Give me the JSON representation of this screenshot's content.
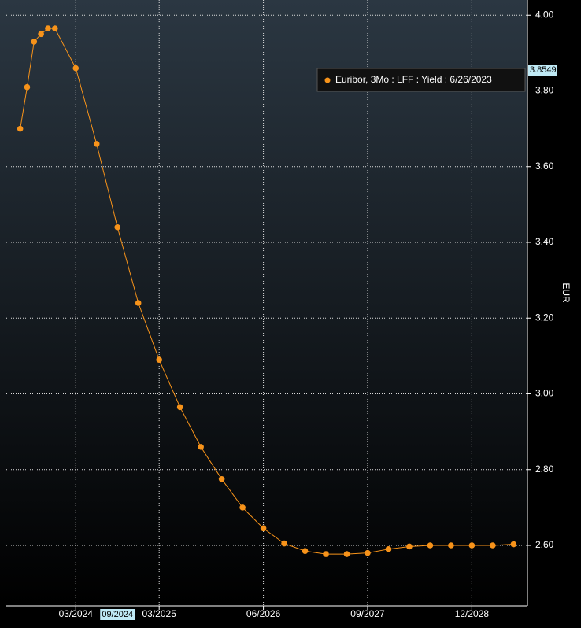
{
  "chart_data": {
    "type": "line",
    "series": [
      {
        "name": "Euribor, 3Mo : LFF : Yield : 6/26/2023",
        "color": "#f7931a",
        "x": [
          "07/2023",
          "08/2023",
          "09/2023",
          "10/2023",
          "11/2023",
          "12/2023",
          "03/2024",
          "06/2024",
          "09/2024",
          "12/2024",
          "03/2025",
          "06/2025",
          "09/2025",
          "12/2025",
          "03/2026",
          "06/2026",
          "09/2026",
          "12/2026",
          "03/2027",
          "06/2027",
          "09/2027",
          "12/2027",
          "03/2028",
          "06/2028",
          "09/2028",
          "12/2028",
          "03/2029",
          "06/2029"
        ],
        "values": [
          3.7,
          3.81,
          3.93,
          3.95,
          3.965,
          3.965,
          3.86,
          3.66,
          3.44,
          3.24,
          3.09,
          2.965,
          2.86,
          2.775,
          2.7,
          2.645,
          2.605,
          2.585,
          2.577,
          2.577,
          2.58,
          2.59,
          2.597,
          2.6,
          2.6,
          2.6,
          2.6,
          2.603
        ]
      }
    ],
    "xlim": [
      "05/2023",
      "08/2029"
    ],
    "xticks": [
      "03/2024",
      "03/2025",
      "06/2026",
      "09/2027",
      "12/2028"
    ],
    "cursor_label": "09/2024",
    "ylabel": "EUR",
    "ylim": [
      2.44,
      4.04
    ],
    "yticks": [
      {
        "value": 2.6,
        "label": "2.60"
      },
      {
        "value": 2.8,
        "label": "2.80"
      },
      {
        "value": 3.0,
        "label": "3.00"
      },
      {
        "value": 3.2,
        "label": "3.20"
      },
      {
        "value": 3.4,
        "label": "3.40"
      },
      {
        "value": 3.6,
        "label": "3.60"
      },
      {
        "value": 3.8,
        "label": "3.80"
      },
      {
        "value": 4.0,
        "label": "4.00"
      }
    ],
    "last_value": 3.8549,
    "grid": true
  }
}
